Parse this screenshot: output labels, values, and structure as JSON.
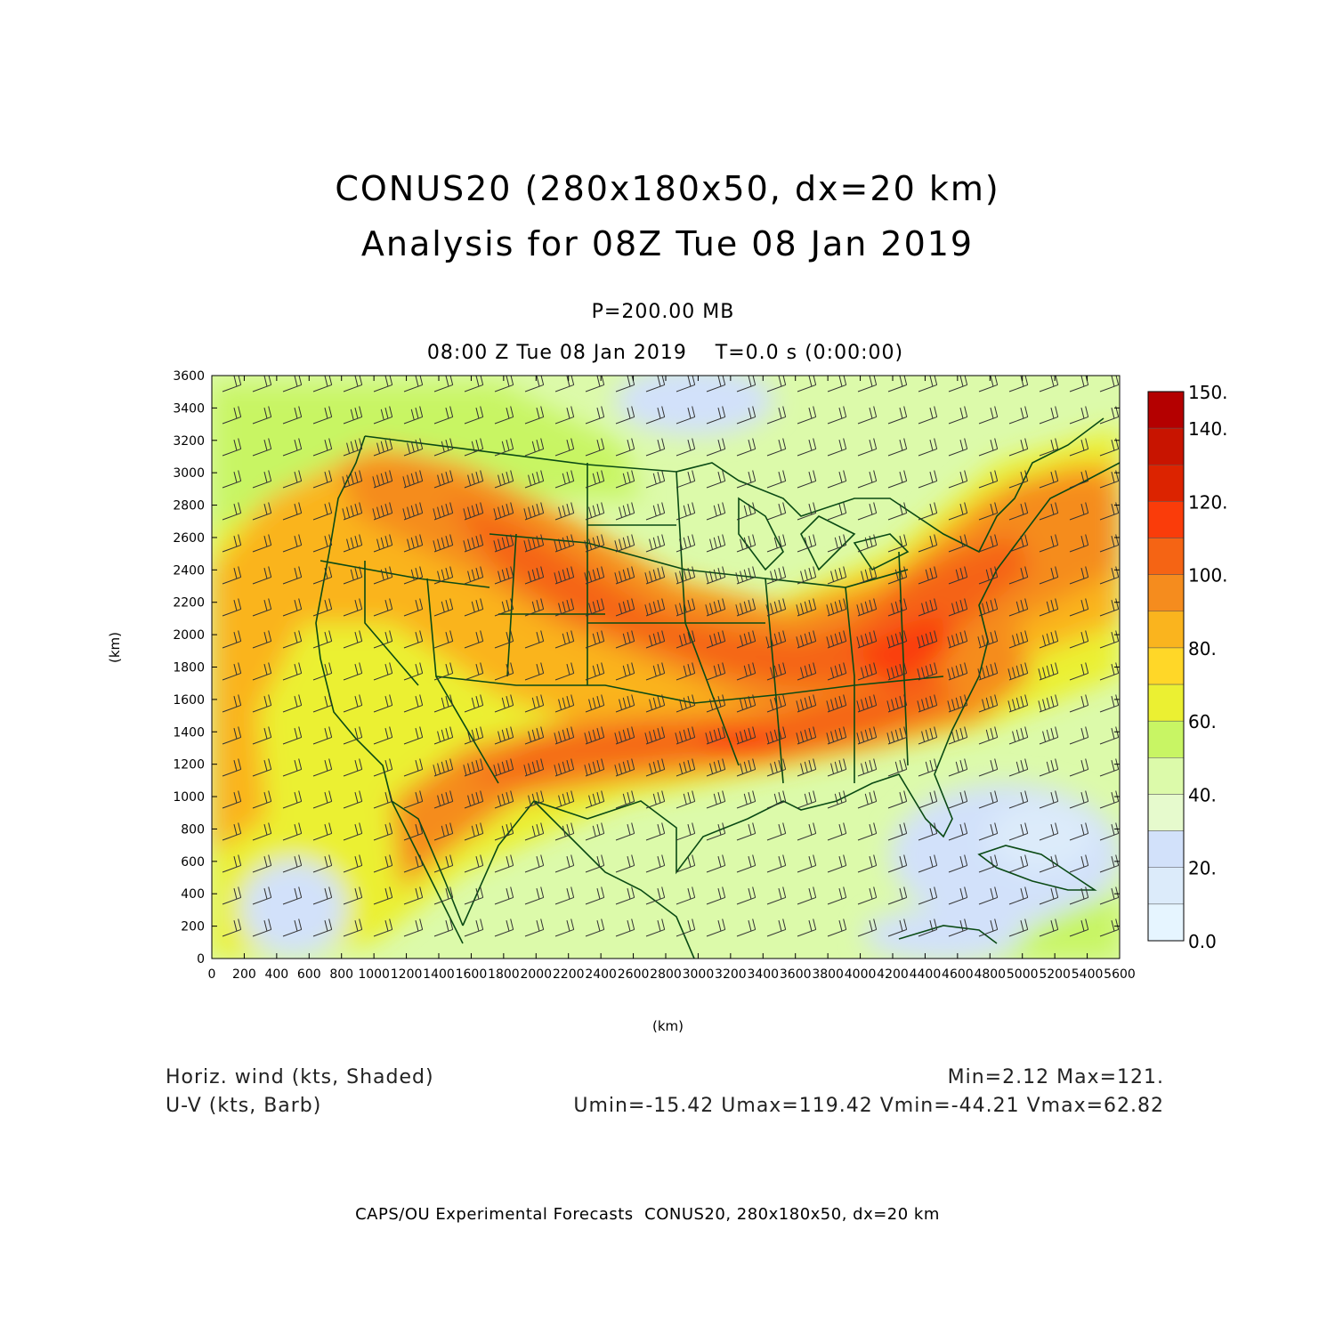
{
  "title": {
    "line1": "CONUS20 (280x180x50, dx=20 km)",
    "line2": "Analysis for 08Z Tue 08 Jan 2019"
  },
  "level_label": "P=200.00 MB",
  "valid_time_label": "08:00 Z Tue 08 Jan 2019    T=0.0 s (0:00:00)",
  "chart_data": {
    "type": "heatmap",
    "x_label": "(km)",
    "y_label": "(km)",
    "xlim": [
      0,
      5600
    ],
    "ylim": [
      0,
      3600
    ],
    "x_ticks": [
      0,
      200,
      400,
      600,
      800,
      1000,
      1200,
      1400,
      1600,
      1800,
      2000,
      2200,
      2400,
      2600,
      2800,
      3000,
      3200,
      3400,
      3600,
      3800,
      4000,
      4200,
      4400,
      4600,
      4800,
      5000,
      5200,
      5400,
      5600
    ],
    "y_ticks": [
      0,
      200,
      400,
      600,
      800,
      1000,
      1200,
      1400,
      1600,
      1800,
      2000,
      2200,
      2400,
      2600,
      2800,
      3000,
      3200,
      3400,
      3600
    ],
    "colorbar": {
      "labels": [
        "150.",
        "140.",
        "120.",
        "100.",
        "80.",
        "60.",
        "40.",
        "20.",
        "0.0"
      ],
      "bins": [
        {
          "range": [
            140,
            150
          ],
          "color": "#b40000"
        },
        {
          "range": [
            130,
            140
          ],
          "color": "#c81400"
        },
        {
          "range": [
            120,
            130
          ],
          "color": "#dc2300"
        },
        {
          "range": [
            110,
            120
          ],
          "color": "#fa3c0a"
        },
        {
          "range": [
            100,
            110
          ],
          "color": "#f56414"
        },
        {
          "range": [
            90,
            100
          ],
          "color": "#f58c1e"
        },
        {
          "range": [
            80,
            90
          ],
          "color": "#fab41e"
        },
        {
          "range": [
            70,
            80
          ],
          "color": "#ffd728"
        },
        {
          "range": [
            60,
            70
          ],
          "color": "#ebf032"
        },
        {
          "range": [
            50,
            60
          ],
          "color": "#c8f564"
        },
        {
          "range": [
            40,
            50
          ],
          "color": "#dcfaaa"
        },
        {
          "range": [
            30,
            40
          ],
          "color": "#e6facd"
        },
        {
          "range": [
            20,
            30
          ],
          "color": "#d2e1fa"
        },
        {
          "range": [
            10,
            20
          ],
          "color": "#dcebfa"
        },
        {
          "range": [
            0,
            10
          ],
          "color": "#e6f5ff"
        }
      ]
    },
    "field_note_values": {
      "min": 2.12,
      "max": 121,
      "umin": -15.42,
      "umax": 119.42,
      "vmin": -44.21,
      "vmax": 62.82
    },
    "jet_max_kts": 121
  },
  "field_label_left1": "Horiz. wind (kts, Shaded)",
  "field_label_left2": "U-V (kts, Barb)",
  "field_label_right1": "Min=2.12 Max=121.",
  "field_label_right2": "Umin=-15.42 Umax=119.42 Vmin=-44.21 Vmax=62.82",
  "footer": "CAPS/OU Experimental Forecasts  CONUS20, 280x180x50, dx=20 km",
  "colors": {
    "map_lines": "#0a4a14",
    "barbs": "#333333"
  }
}
